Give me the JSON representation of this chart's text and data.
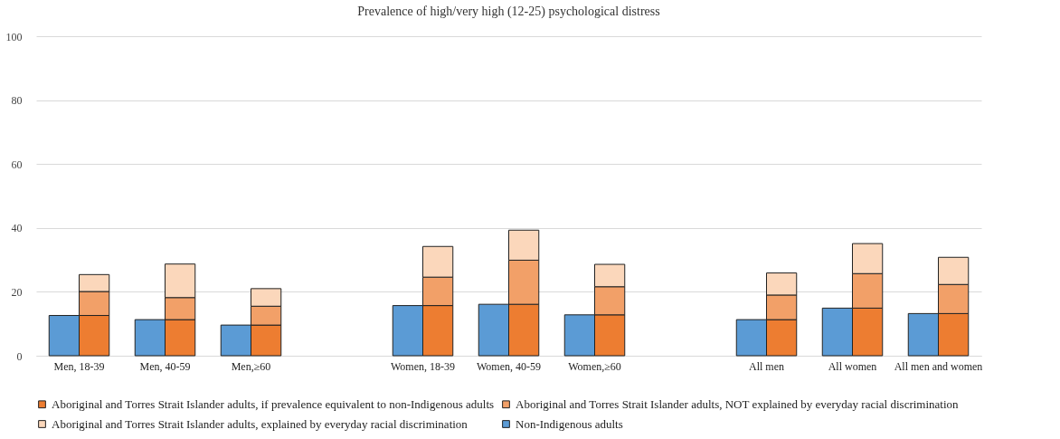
{
  "chart_data": {
    "type": "bar",
    "title": "Prevalence of high/very high (12-25) psychological distress",
    "categories": [
      "Men, 18-39",
      "Men, 40-59",
      "Men,≥60",
      null,
      "Women, 18-39",
      "Women, 40-59",
      "Women,≥60",
      null,
      "All men",
      "All women",
      "All men and women"
    ],
    "ylim": [
      0,
      100
    ],
    "yticks": [
      0,
      20,
      40,
      60,
      80,
      100
    ],
    "grid": "y",
    "legend": "bottom",
    "series": [
      {
        "name": "Aboriginal and Torres Strait Islander adults, if prevalence equivalent to non-Indigenous adults",
        "color": "#ed7d31",
        "base": [
          0,
          0,
          0,
          null,
          0,
          0,
          0,
          null,
          0,
          0,
          0
        ],
        "values": [
          12.6,
          11.3,
          9.6,
          null,
          15.7,
          16.1,
          12.8,
          null,
          11.3,
          14.9,
          13.2
        ]
      },
      {
        "name": "Aboriginal and Torres Strait Islander adults, NOT explained by everyday racial discrimination",
        "color": "#f2a068",
        "base": [
          12.6,
          11.3,
          9.6,
          null,
          15.7,
          16.1,
          12.8,
          null,
          11.3,
          14.9,
          13.2
        ],
        "values": [
          7.5,
          6.9,
          5.9,
          null,
          8.9,
          13.8,
          8.8,
          null,
          7.7,
          10.8,
          9.1
        ]
      },
      {
        "name": "Aboriginal and Torres Strait Islander adults, explained by everyday racial discrimination",
        "color": "#fbd7bb",
        "base": [
          20.1,
          18.2,
          15.5,
          null,
          24.6,
          29.9,
          21.6,
          null,
          19.0,
          25.7,
          22.3
        ],
        "values": [
          5.3,
          10.5,
          5.5,
          null,
          9.6,
          9.4,
          7.0,
          null,
          6.9,
          9.4,
          8.5
        ]
      },
      {
        "name": "Non-Indigenous adults",
        "color": "#5b9bd5",
        "values": [
          12.6,
          11.3,
          9.6,
          null,
          15.7,
          16.1,
          12.8,
          null,
          11.3,
          14.9,
          13.2
        ]
      }
    ]
  }
}
